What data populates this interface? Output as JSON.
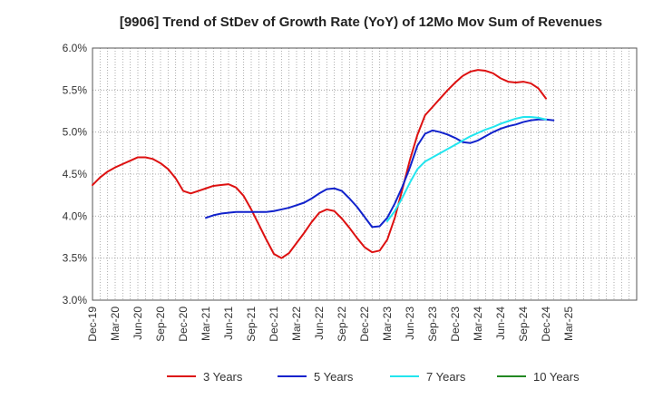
{
  "chart_data": {
    "type": "line",
    "title": "[9906]  Trend of StDev of Growth Rate (YoY) of 12Mo Mov Sum of Revenues",
    "xlabel": "",
    "ylabel": "",
    "ylim": [
      3.0,
      6.0
    ],
    "y_ticks": [
      3.0,
      3.5,
      4.0,
      4.5,
      5.0,
      5.5,
      6.0
    ],
    "y_tick_labels": [
      "3.0%",
      "3.5%",
      "4.0%",
      "4.5%",
      "5.0%",
      "5.5%",
      "6.0%"
    ],
    "x_range_months": [
      0,
      72
    ],
    "x_tick_labels": [
      "Dec-19",
      "Mar-20",
      "Jun-20",
      "Sep-20",
      "Dec-20",
      "Mar-21",
      "Jun-21",
      "Sep-21",
      "Dec-21",
      "Mar-22",
      "Jun-22",
      "Sep-22",
      "Dec-22",
      "Mar-23",
      "Jun-23",
      "Sep-23",
      "Dec-23",
      "Mar-24",
      "Jun-24",
      "Sep-24",
      "Dec-24",
      "Mar-25"
    ],
    "grid": true,
    "legend_position": "bottom",
    "series": [
      {
        "name": "3 Years",
        "color": "#dd1111",
        "start_month": 0,
        "values": [
          4.37,
          4.46,
          4.53,
          4.58,
          4.62,
          4.66,
          4.7,
          4.7,
          4.68,
          4.63,
          4.56,
          4.45,
          4.3,
          4.27,
          4.3,
          4.33,
          4.36,
          4.37,
          4.38,
          4.34,
          4.24,
          4.08,
          3.9,
          3.72,
          3.55,
          3.5,
          3.56,
          3.68,
          3.8,
          3.93,
          4.04,
          4.08,
          4.06,
          3.97,
          3.86,
          3.74,
          3.63,
          3.57,
          3.59,
          3.72,
          3.98,
          4.32,
          4.67,
          4.97,
          5.2,
          5.3,
          5.4,
          5.5,
          5.59,
          5.67,
          5.72,
          5.74,
          5.73,
          5.7,
          5.64,
          5.6,
          5.59,
          5.6,
          5.58,
          5.52,
          5.4
        ]
      },
      {
        "name": "5 Years",
        "color": "#1122cc",
        "start_month": 15,
        "values": [
          3.98,
          4.01,
          4.03,
          4.04,
          4.05,
          4.05,
          4.05,
          4.05,
          4.05,
          4.06,
          4.08,
          4.1,
          4.13,
          4.16,
          4.21,
          4.27,
          4.32,
          4.33,
          4.3,
          4.21,
          4.11,
          3.99,
          3.87,
          3.88,
          3.98,
          4.15,
          4.35,
          4.58,
          4.84,
          4.98,
          5.02,
          5.0,
          4.97,
          4.93,
          4.88,
          4.87,
          4.9,
          4.95,
          5.0,
          5.04,
          5.07,
          5.09,
          5.12,
          5.14,
          5.15,
          5.15,
          5.14
        ]
      },
      {
        "name": "7 Years",
        "color": "#22e5ee",
        "start_month": 39,
        "values": [
          3.94,
          4.06,
          4.22,
          4.4,
          4.56,
          4.65,
          4.7,
          4.75,
          4.8,
          4.85,
          4.9,
          4.95,
          4.99,
          5.03,
          5.06,
          5.1,
          5.13,
          5.16,
          5.18,
          5.18,
          5.17,
          5.15
        ]
      },
      {
        "name": "10 Years",
        "color": "#228822",
        "start_month": 0,
        "values": []
      }
    ]
  }
}
